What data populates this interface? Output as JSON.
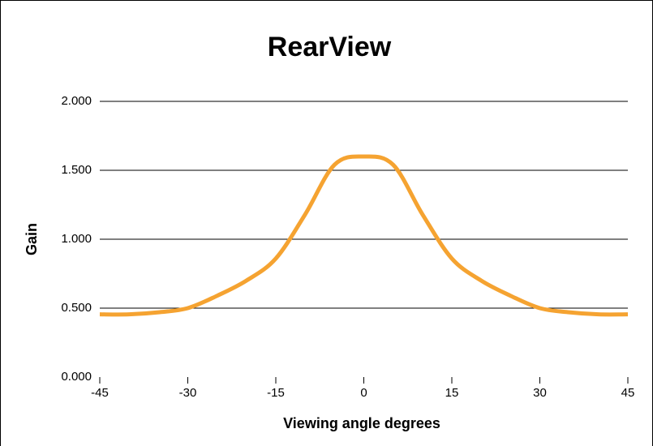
{
  "chart_data": {
    "type": "line",
    "title": "RearView",
    "xlabel": "Viewing angle degrees",
    "ylabel": "Gain",
    "x": [
      -45,
      -40,
      -35,
      -30,
      -25,
      -20,
      -15,
      -10,
      -5,
      0,
      5,
      10,
      15,
      20,
      25,
      30,
      35,
      40,
      45
    ],
    "series": [
      {
        "name": "RearView",
        "color": "#f5a331",
        "values": [
          0.455,
          0.455,
          0.47,
          0.5,
          0.59,
          0.7,
          0.86,
          1.18,
          1.54,
          1.6,
          1.54,
          1.18,
          0.86,
          0.7,
          0.59,
          0.5,
          0.47,
          0.455,
          0.455
        ]
      }
    ],
    "xlim": [
      -45,
      45
    ],
    "xticks": [
      -45,
      -30,
      -15,
      0,
      15,
      30,
      45
    ],
    "ylim": [
      0,
      2
    ],
    "yticks": [
      {
        "value": 0,
        "label": "0.000"
      },
      {
        "value": 0.5,
        "label": "0.500"
      },
      {
        "value": 1,
        "label": "1.000"
      },
      {
        "value": 1.5,
        "label": "1.500"
      },
      {
        "value": 2,
        "label": "2.000"
      }
    ],
    "grid": true
  }
}
